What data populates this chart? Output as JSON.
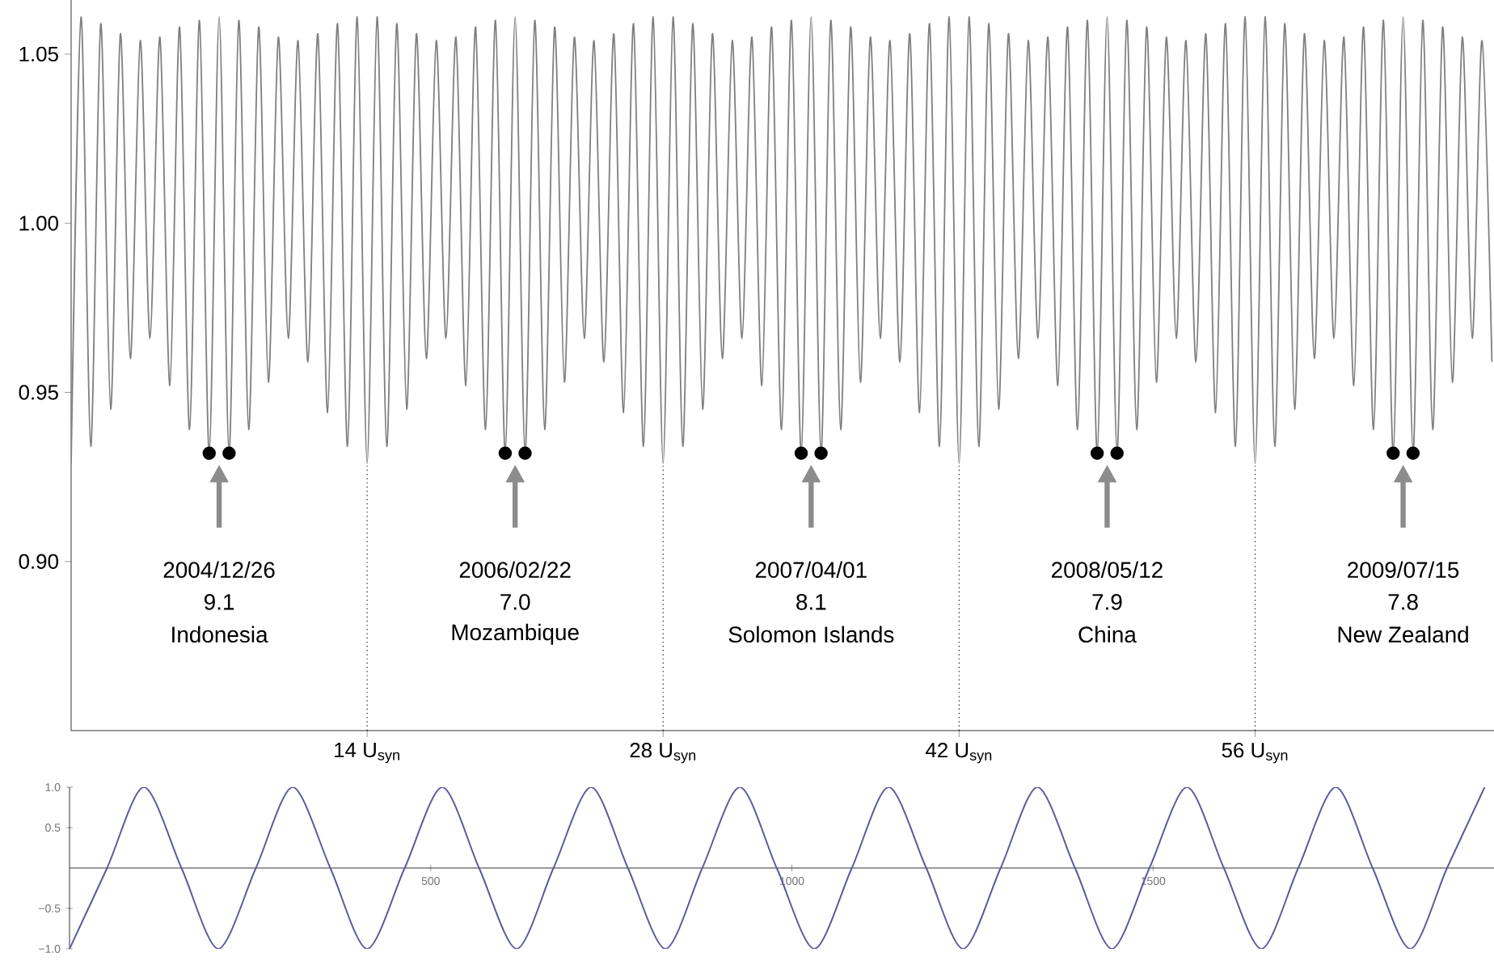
{
  "chart_data": [
    {
      "type": "line",
      "xlim": [
        0,
        67.3
      ],
      "ylim": [
        0.85,
        1.066
      ],
      "xticks": [
        {
          "value": 14,
          "label": "14 U$_{syn}$"
        },
        {
          "value": 28,
          "label": "28 U$_{syn}$"
        },
        {
          "value": 42,
          "label": "42 U$_{syn}$"
        },
        {
          "value": 56,
          "label": "56 U$_{syn}$"
        }
      ],
      "yticks": [
        {
          "value": 0.9,
          "label": "0.90"
        },
        {
          "value": 0.95,
          "label": "0.95"
        },
        {
          "value": 1.0,
          "label": "1.00"
        },
        {
          "value": 1.05,
          "label": "1.05"
        }
      ],
      "series": [
        {
          "color": "#7f7f7f",
          "x": [
            0,
            0.47,
            0.93,
            1.4,
            1.87,
            2.33,
            2.8,
            3.27,
            3.73,
            4.2,
            4.67,
            5.13,
            5.6,
            6.07,
            6.53,
            7,
            7.47,
            7.93,
            8.4,
            8.87,
            9.33,
            9.8,
            10.27,
            10.73,
            11.2,
            11.67,
            12.13,
            12.6,
            13.07,
            13.53,
            14,
            14.47,
            14.93,
            15.4,
            15.87,
            16.33,
            16.8,
            17.27,
            17.73,
            18.2,
            18.67,
            19.13,
            19.6,
            20.07,
            20.53,
            21,
            21.47,
            21.93,
            22.4,
            22.87,
            23.33,
            23.8,
            24.27,
            24.73,
            25.2,
            25.67,
            26.13,
            26.6,
            27.07,
            27.53,
            28,
            28.47,
            28.93,
            29.4,
            29.87,
            30.33,
            30.8,
            31.27,
            31.73,
            32.2,
            32.67,
            33.13,
            33.6,
            34.07,
            34.53,
            35,
            35.47,
            35.93,
            36.4,
            36.87,
            37.33,
            37.8,
            38.27,
            38.73,
            39.2,
            39.67,
            40.13,
            40.6,
            41.07,
            41.53,
            42,
            42.47,
            42.93,
            43.4,
            43.87,
            44.33,
            44.8,
            45.27,
            45.73,
            46.2,
            46.67,
            47.13,
            47.6,
            48.07,
            48.53,
            49,
            49.47,
            49.93,
            50.4,
            50.87,
            51.33,
            51.8,
            52.27,
            52.73,
            53.2,
            53.67,
            54.13,
            54.6,
            55.07,
            55.53,
            56,
            56.47,
            56.93,
            57.4,
            57.87,
            58.33,
            58.8,
            59.27,
            59.73,
            60.2,
            60.67,
            61.13,
            61.6,
            62.07,
            62.53,
            63,
            63.47,
            63.93,
            64.4,
            64.87,
            65.33,
            65.8,
            66.27,
            66.73,
            67.2
          ],
          "values": [
            0.929,
            1.061,
            0.934,
            1.059,
            0.945,
            1.056,
            0.96,
            1.054,
            0.966,
            1.055,
            0.952,
            1.058,
            0.939,
            1.06,
            0.932,
            1.061,
            0.932,
            1.06,
            0.939,
            1.058,
            0.953,
            1.055,
            0.966,
            1.054,
            0.959,
            1.056,
            0.944,
            1.059,
            0.934,
            1.061,
            0.929,
            1.061,
            0.934,
            1.059,
            0.945,
            1.056,
            0.96,
            1.054,
            0.966,
            1.055,
            0.952,
            1.058,
            0.939,
            1.06,
            0.932,
            1.061,
            0.932,
            1.06,
            0.939,
            1.058,
            0.953,
            1.055,
            0.966,
            1.054,
            0.959,
            1.056,
            0.944,
            1.059,
            0.934,
            1.061,
            0.929,
            1.061,
            0.934,
            1.059,
            0.945,
            1.056,
            0.96,
            1.054,
            0.966,
            1.055,
            0.952,
            1.058,
            0.939,
            1.06,
            0.932,
            1.061,
            0.932,
            1.06,
            0.939,
            1.058,
            0.953,
            1.055,
            0.966,
            1.054,
            0.959,
            1.056,
            0.944,
            1.059,
            0.934,
            1.061,
            0.929,
            1.061,
            0.934,
            1.059,
            0.945,
            1.056,
            0.96,
            1.054,
            0.966,
            1.055,
            0.952,
            1.058,
            0.939,
            1.06,
            0.932,
            1.061,
            0.932,
            1.06,
            0.939,
            1.058,
            0.953,
            1.055,
            0.966,
            1.054,
            0.959,
            1.056,
            0.944,
            1.059,
            0.934,
            1.061,
            0.929,
            1.061,
            0.934,
            1.059,
            0.945,
            1.056,
            0.96,
            1.054,
            0.966,
            1.055,
            0.952,
            1.058,
            0.939,
            1.06,
            0.932,
            1.061,
            0.932,
            1.06,
            0.939,
            1.058,
            0.953,
            1.055,
            0.966,
            1.054,
            0.959
          ]
        },
        {
          "type": "scatter",
          "color": "#000000",
          "x": [
            6.53,
            7.47,
            20.53,
            21.47,
            34.53,
            35.47,
            48.53,
            49.47,
            62.53,
            63.47
          ],
          "values": [
            0.932,
            0.932,
            0.932,
            0.932,
            0.932,
            0.932,
            0.932,
            0.932,
            0.932,
            0.932
          ]
        }
      ],
      "ref_lines": [
        {
          "axis": "x",
          "value": 14,
          "line_style": "dotted"
        },
        {
          "axis": "x",
          "value": 28,
          "line_style": "dotted"
        },
        {
          "axis": "x",
          "value": 42,
          "line_style": "dotted"
        },
        {
          "axis": "x",
          "value": 56,
          "line_style": "dotted"
        }
      ],
      "annotations": [
        "2004/12/26",
        "9.1",
        "Indonesia",
        "2006/02/22",
        "7.0",
        "Mozambique",
        "2007/04/01",
        "8.1",
        "Solomon Islands",
        "2008/05/12",
        "7.9",
        "China",
        "2009/07/15",
        "7.8",
        "New Zealand"
      ]
    },
    {
      "type": "line",
      "xlim": [
        0,
        1972
      ],
      "ylim": [
        -1,
        1
      ],
      "xticks": [
        500,
        1000,
        1500
      ],
      "yticks": [
        {
          "value": -1,
          "label": "−1.0"
        },
        {
          "value": -0.5,
          "label": "−0.5"
        },
        {
          "value": 0.5,
          "label": "0.5"
        },
        {
          "value": 1,
          "label": "1.0"
        }
      ],
      "series": [
        {
          "color": "#5a5aa0",
          "x": [
            0,
            52,
            103,
            155,
            206,
            258,
            309,
            361,
            412,
            464,
            516,
            567,
            619,
            670,
            722,
            773,
            825,
            876,
            928,
            979,
            1031,
            1083,
            1134,
            1186,
            1237,
            1289,
            1340,
            1392,
            1443,
            1495,
            1547,
            1598,
            1650,
            1701,
            1753,
            1804,
            1856,
            1907,
            1959
          ],
          "values": [
            -1,
            0,
            1,
            0,
            -1,
            0,
            1,
            0,
            -1,
            0,
            1,
            0,
            -1,
            0,
            1,
            0,
            -1,
            0,
            1,
            0,
            -1,
            0,
            1,
            0,
            -1,
            0,
            1,
            0,
            -1,
            0,
            1,
            0,
            -1,
            0,
            1,
            0,
            -1,
            0,
            1
          ]
        }
      ]
    }
  ]
}
